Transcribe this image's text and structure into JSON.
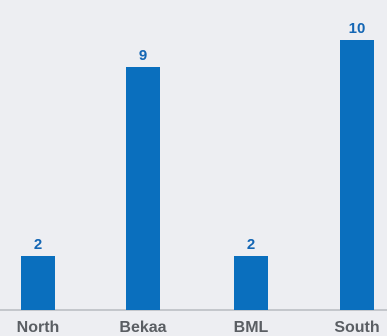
{
  "chart_data": {
    "type": "bar",
    "categories": [
      "North",
      "Bekaa",
      "BML",
      "South"
    ],
    "values": [
      2,
      9,
      2,
      10
    ],
    "data_labels": [
      "2",
      "9",
      "2",
      "10"
    ],
    "title": "",
    "xlabel": "",
    "ylabel": "",
    "ylim": [
      0,
      10
    ],
    "grid": false,
    "legend": "none",
    "bar_color": "#0a6fbe",
    "value_label_color": "#1466b4",
    "category_label_color": "#5a5e63",
    "background_color": "#edeef2"
  }
}
